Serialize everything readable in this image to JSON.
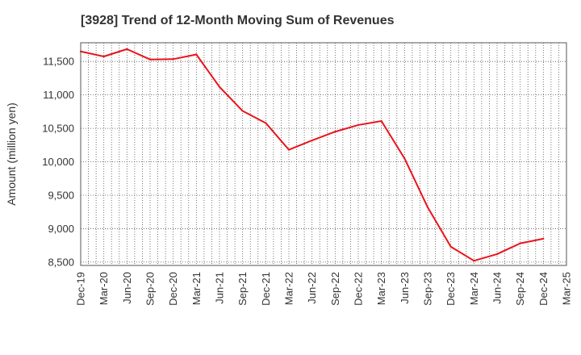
{
  "chart_data": {
    "type": "line",
    "title": "[3928]  Trend of 12-Month Moving Sum of Revenues",
    "xlabel": "",
    "ylabel": "Amount (million yen)",
    "categories": [
      "Dec-19",
      "Mar-20",
      "Jun-20",
      "Sep-20",
      "Dec-20",
      "Mar-21",
      "Jun-21",
      "Sep-21",
      "Dec-21",
      "Mar-22",
      "Jun-22",
      "Sep-22",
      "Dec-22",
      "Mar-23",
      "Jun-23",
      "Sep-23",
      "Dec-23",
      "Mar-24",
      "Jun-24",
      "Sep-24",
      "Dec-24",
      "Mar-25"
    ],
    "series": [
      {
        "name": "",
        "color": "#e8141c",
        "values": [
          11650,
          11575,
          11685,
          11530,
          11535,
          11605,
          11120,
          10760,
          10580,
          10180,
          10320,
          10450,
          10550,
          10610,
          10050,
          9320,
          8730,
          8520,
          8620,
          8780,
          8850,
          null
        ]
      }
    ],
    "yticks": [
      8500,
      9000,
      9500,
      10000,
      10500,
      11000,
      11500
    ],
    "ytick_labels": [
      "8,500",
      "9,000",
      "9,500",
      "10,000",
      "10,500",
      "11,000",
      "11,500"
    ],
    "ylim": [
      8450,
      11780
    ],
    "grid": true
  }
}
